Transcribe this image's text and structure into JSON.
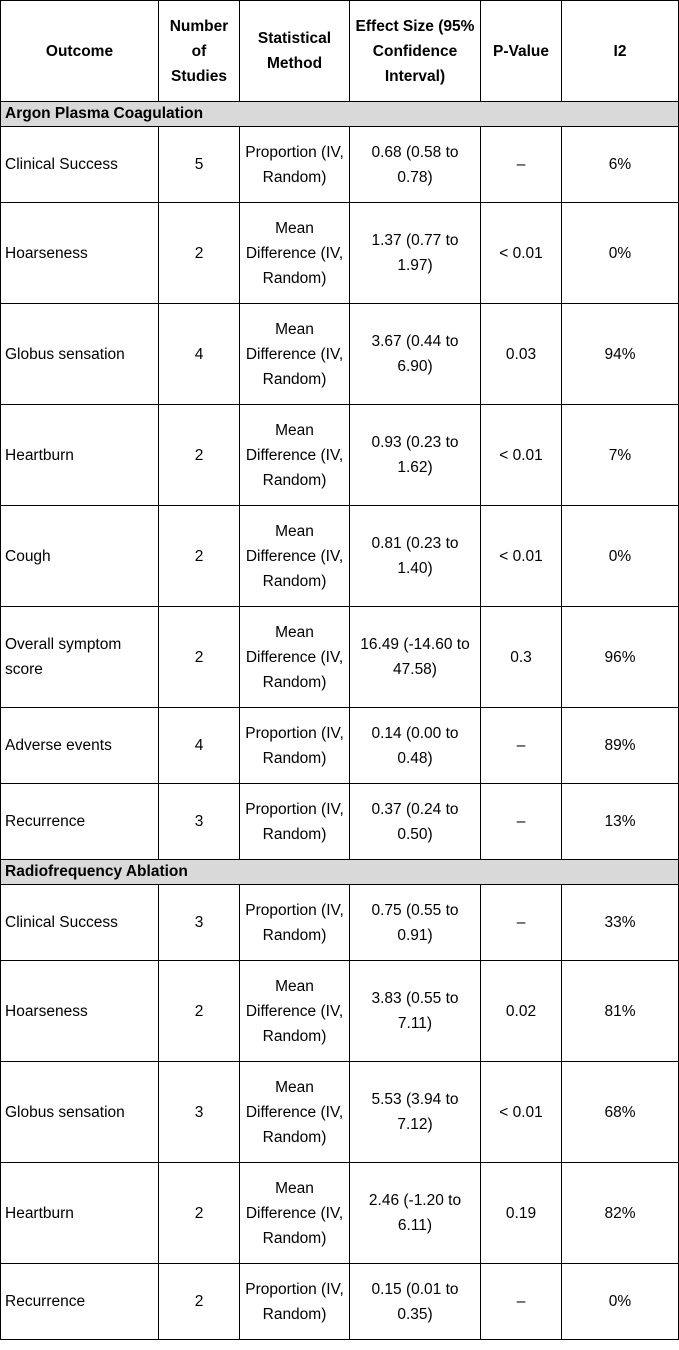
{
  "headers": [
    "Outcome",
    "Number of Studies",
    "Statistical Method",
    "Effect Size (95% Confidence Interval)",
    "P-Value",
    "I2"
  ],
  "sections": [
    {
      "title": "Argon Plasma Coagulation",
      "rows": [
        {
          "outcome": "Clinical Success",
          "n": "5",
          "method": "Proportion (IV, Random)",
          "effect": "0.68 (0.58 to 0.78)",
          "p": "–",
          "i2": "6%"
        },
        {
          "outcome": "Hoarseness",
          "n": "2",
          "method": "Mean Difference (IV, Random)",
          "effect": "1.37 (0.77 to 1.97)",
          "p": "< 0.01",
          "i2": "0%"
        },
        {
          "outcome": "Globus sensation",
          "n": "4",
          "method": "Mean Difference (IV, Random)",
          "effect": "3.67 (0.44 to 6.90)",
          "p": "0.03",
          "i2": "94%"
        },
        {
          "outcome": "Heartburn",
          "n": "2",
          "method": "Mean Difference (IV, Random)",
          "effect": "0.93 (0.23 to 1.62)",
          "p": "< 0.01",
          "i2": "7%"
        },
        {
          "outcome": "Cough",
          "n": "2",
          "method": "Mean Difference (IV, Random)",
          "effect": "0.81 (0.23 to 1.40)",
          "p": "< 0.01",
          "i2": "0%"
        },
        {
          "outcome": "Overall symptom score",
          "n": "2",
          "method": "Mean Difference (IV, Random)",
          "effect": "16.49 (-14.60 to 47.58)",
          "p": "0.3",
          "i2": "96%"
        },
        {
          "outcome": "Adverse events",
          "n": "4",
          "method": "Proportion (IV, Random)",
          "effect": "0.14 (0.00 to 0.48)",
          "p": "–",
          "i2": "89%"
        },
        {
          "outcome": "Recurrence",
          "n": "3",
          "method": "Proportion (IV, Random)",
          "effect": "0.37 (0.24 to 0.50)",
          "p": "–",
          "i2": "13%"
        }
      ]
    },
    {
      "title": "Radiofrequency Ablation",
      "rows": [
        {
          "outcome": "Clinical Success",
          "n": "3",
          "method": "Proportion (IV, Random)",
          "effect": "0.75 (0.55 to 0.91)",
          "p": "–",
          "i2": "33%"
        },
        {
          "outcome": "Hoarseness",
          "n": "2",
          "method": "Mean Difference (IV, Random)",
          "effect": "3.83 (0.55 to 7.11)",
          "p": "0.02",
          "i2": "81%"
        },
        {
          "outcome": "Globus sensation",
          "n": "3",
          "method": "Mean Difference (IV, Random)",
          "effect": "5.53 (3.94 to 7.12)",
          "p": "< 0.01",
          "i2": "68%"
        },
        {
          "outcome": "Heartburn",
          "n": "2",
          "method": "Mean Difference (IV, Random)",
          "effect": "2.46 (-1.20 to 6.11)",
          "p": "0.19",
          "i2": "82%"
        },
        {
          "outcome": "Recurrence",
          "n": "2",
          "method": "Proportion (IV, Random)",
          "effect": "0.15 (0.01 to 0.35)",
          "p": "–",
          "i2": "0%"
        }
      ]
    }
  ]
}
